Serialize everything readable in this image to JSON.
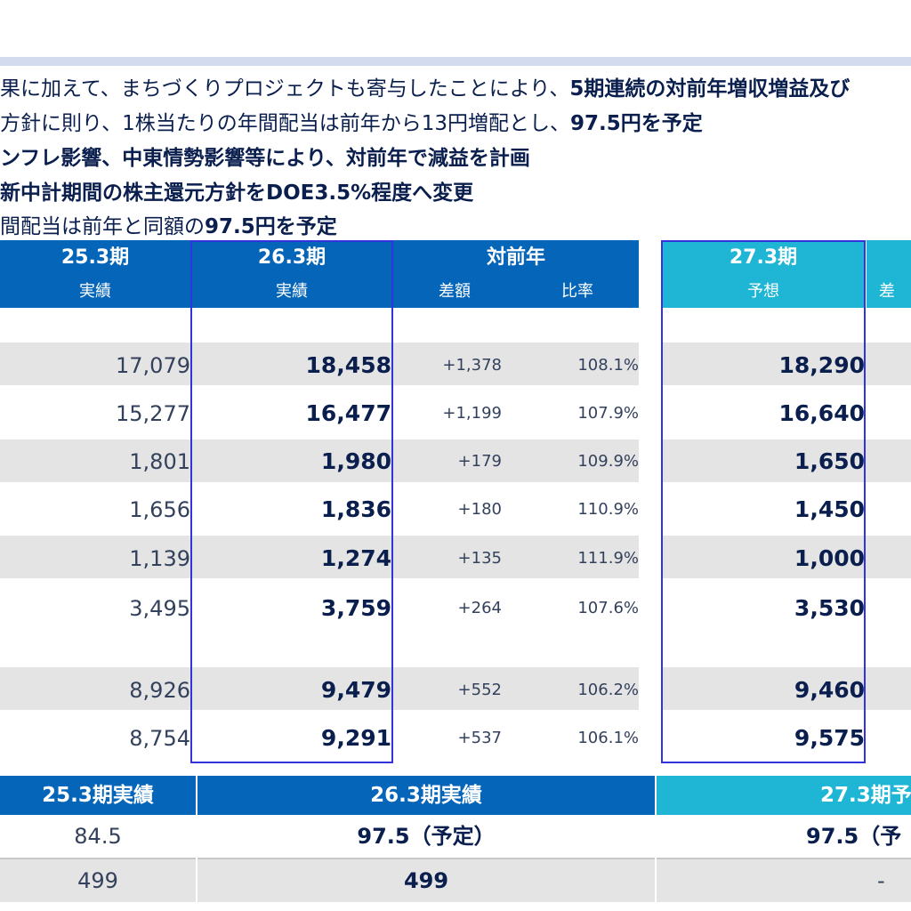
{
  "bullets": [
    {
      "plain": "果に加えて、まちづくりプロジェクトも寄与したことにより、",
      "bold": "5期連続の対前年増収増益及び"
    },
    {
      "plain": "方針に則り、1株当たりの年間配当は前年から13円増配とし、",
      "bold": "97.5円を予定"
    },
    {
      "plain": "",
      "bold": "ンフレ影響、中東情勢影響等により、対前年で減益を計画"
    },
    {
      "plain": "",
      "bold": "新中計期間の株主還元方針をDOE3.5%程度へ変更"
    },
    {
      "plain": "間配当は前年と同額の",
      "bold": "97.5円を予定"
    }
  ],
  "table": {
    "headers": {
      "fy25": "25.3期",
      "fy26": "26.3期",
      "yoy": "対前年",
      "fy27": "27.3期",
      "fy25_sub": "実績",
      "fy26_sub": "実績",
      "diff_sub": "差額",
      "ratio_sub": "比率",
      "fy27_sub": "予想",
      "cut_sub": "差"
    },
    "rows": [
      {
        "fy25": "17,079",
        "fy26": "18,458",
        "diff": "+1,378",
        "ratio": "108.1%",
        "fy27": "18,290"
      },
      {
        "fy25": "15,277",
        "fy26": "16,477",
        "diff": "+1,199",
        "ratio": "107.9%",
        "fy27": "16,640"
      },
      {
        "fy25": "1,801",
        "fy26": "1,980",
        "diff": "+179",
        "ratio": "109.9%",
        "fy27": "1,650"
      },
      {
        "fy25": "1,656",
        "fy26": "1,836",
        "diff": "+180",
        "ratio": "110.9%",
        "fy27": "1,450"
      },
      {
        "fy25": "1,139",
        "fy26": "1,274",
        "diff": "+135",
        "ratio": "111.9%",
        "fy27": "1,000"
      },
      {
        "fy25": "3,495",
        "fy26": "3,759",
        "diff": "+264",
        "ratio": "107.6%",
        "fy27": "3,530"
      },
      {
        "fy25": "8,926",
        "fy26": "9,479",
        "diff": "+552",
        "ratio": "106.2%",
        "fy27": "9,460"
      },
      {
        "fy25": "8,754",
        "fy26": "9,291",
        "diff": "+537",
        "ratio": "106.1%",
        "fy27": "9,575"
      }
    ]
  },
  "dividend": {
    "headers": {
      "fy25": "25.3期実績",
      "fy26": "26.3期実績",
      "fy27": "27.3期予"
    },
    "rows": [
      {
        "fy25": "84.5",
        "fy26": "97.5（予定）",
        "fy27": "97.5（予"
      },
      {
        "fy25": "499",
        "fy26": "499",
        "fy27": "-"
      }
    ]
  },
  "colors": {
    "header_dark": "#0565b8",
    "header_light": "#1fb6d6",
    "band": "#e4e4e4",
    "frame": "#3333dd"
  }
}
